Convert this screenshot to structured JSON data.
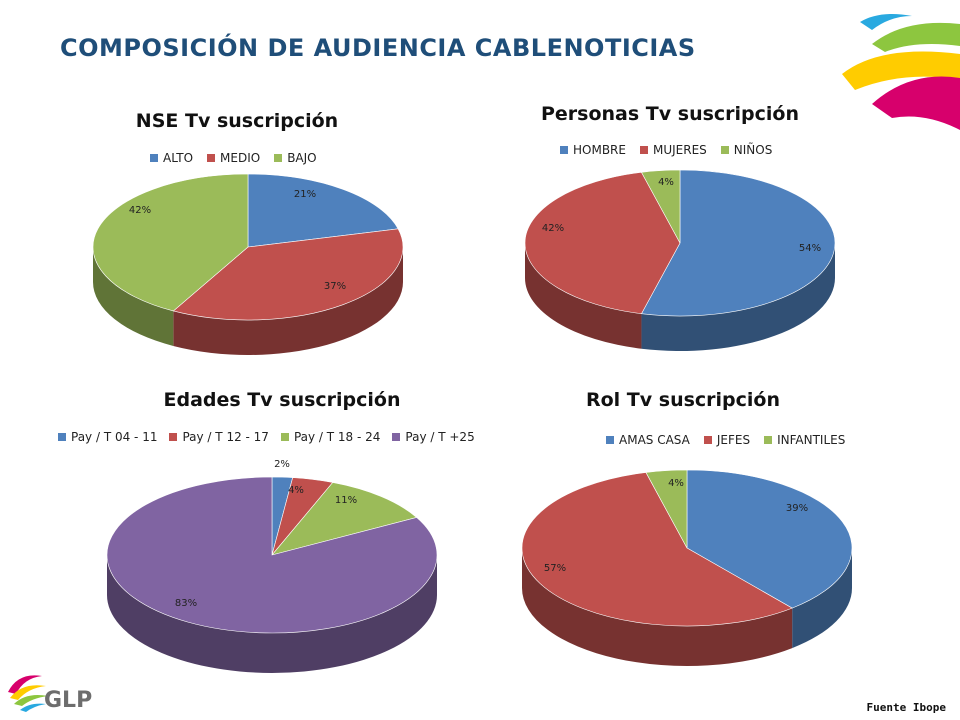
{
  "page": {
    "title": "COMPOSICIÓN DE AUDIENCIA CABLENOTICIAS",
    "source": "Fuente Ibope",
    "logo_text": "GLP"
  },
  "colors": {
    "blue": "#4f81bd",
    "red": "#c0504d",
    "green": "#9bbb59",
    "purple": "#8064a2",
    "title": "#1f4e79"
  },
  "chart_data": [
    {
      "type": "pie",
      "title": "NSE Tv suscripción",
      "categories": [
        "ALTO",
        "MEDIO",
        "BAJO"
      ],
      "values": [
        21,
        37,
        42
      ],
      "labels": [
        "21%",
        "37%",
        "42%"
      ],
      "colors": [
        "#4f81bd",
        "#c0504d",
        "#9bbb59"
      ],
      "legend": "top"
    },
    {
      "type": "pie",
      "title": "Personas Tv suscripción",
      "categories": [
        "HOMBRE",
        "MUJERES",
        "NIÑOS"
      ],
      "values": [
        54,
        42,
        4
      ],
      "labels": [
        "54%",
        "42%",
        "4%"
      ],
      "colors": [
        "#4f81bd",
        "#c0504d",
        "#9bbb59"
      ],
      "legend": "top"
    },
    {
      "type": "pie",
      "title": "Edades Tv suscripción",
      "categories": [
        "Pay / T 04 - 11",
        "Pay / T 12 - 17",
        "Pay / T 18 - 24",
        "Pay / T +25"
      ],
      "values": [
        2,
        4,
        11,
        83
      ],
      "labels": [
        "2%",
        "4%",
        "11%",
        "83%"
      ],
      "colors": [
        "#4f81bd",
        "#c0504d",
        "#9bbb59",
        "#8064a2"
      ],
      "legend": "top"
    },
    {
      "type": "pie",
      "title": "Rol Tv suscripción",
      "categories": [
        "AMAS CASA",
        "JEFES",
        "INFANTILES"
      ],
      "values": [
        39,
        57,
        4
      ],
      "labels": [
        "39%",
        "57%",
        "4%"
      ],
      "colors": [
        "#4f81bd",
        "#c0504d",
        "#9bbb59"
      ],
      "legend": "top"
    }
  ]
}
